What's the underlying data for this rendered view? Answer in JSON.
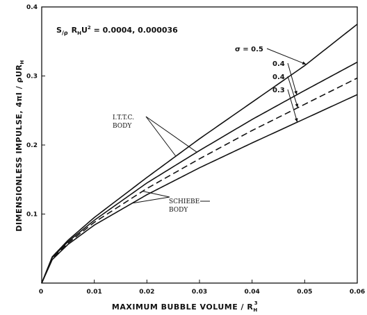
{
  "chart_data": {
    "type": "line",
    "title": "",
    "xlabel": "MAXIMUM BUBBLE VOLUME / R_H^3",
    "ylabel": "DIMENSIONLESS IMPULSE, 4πI / ρUR_H",
    "xlim": [
      0,
      0.06
    ],
    "ylim": [
      0,
      0.4
    ],
    "x_ticks": [
      {
        "value": 0,
        "label": "0"
      },
      {
        "value": 0.01,
        "label": "0.01"
      },
      {
        "value": 0.02,
        "label": "0.02"
      },
      {
        "value": 0.03,
        "label": "0.03"
      },
      {
        "value": 0.04,
        "label": "0.04"
      },
      {
        "value": 0.05,
        "label": "0.05"
      },
      {
        "value": 0.06,
        "label": "0.06"
      }
    ],
    "y_ticks": [
      {
        "value": 0.1,
        "label": "0.1"
      },
      {
        "value": 0.2,
        "label": "0.2"
      },
      {
        "value": 0.3,
        "label": "0.3"
      },
      {
        "value": 0.4,
        "label": "0.4"
      }
    ],
    "grid": false,
    "parameter_text": "S/ρ R_H U² = 0.0004, 0.000036",
    "series": [
      {
        "name": "σ = 0.5",
        "dash": "solid",
        "x": [
          0,
          0.002,
          0.005,
          0.01,
          0.02,
          0.03,
          0.04,
          0.05,
          0.06
        ],
        "y": [
          0,
          0.038,
          0.062,
          0.095,
          0.153,
          0.209,
          0.262,
          0.315,
          0.375
        ]
      },
      {
        "name": "0.4",
        "dash": "solid",
        "x": [
          0,
          0.002,
          0.005,
          0.01,
          0.02,
          0.03,
          0.04,
          0.05,
          0.06
        ],
        "y": [
          0,
          0.037,
          0.06,
          0.091,
          0.145,
          0.192,
          0.237,
          0.279,
          0.32
        ]
      },
      {
        "name": "0.4",
        "dash": "dashed",
        "x": [
          0,
          0.002,
          0.005,
          0.01,
          0.02,
          0.03,
          0.04,
          0.05,
          0.06
        ],
        "y": [
          0,
          0.035,
          0.058,
          0.088,
          0.137,
          0.18,
          0.221,
          0.259,
          0.297
        ]
      },
      {
        "name": "0.3",
        "dash": "solid",
        "x": [
          0,
          0.002,
          0.005,
          0.01,
          0.02,
          0.03,
          0.04,
          0.05,
          0.06
        ],
        "y": [
          0,
          0.034,
          0.056,
          0.084,
          0.128,
          0.167,
          0.203,
          0.238,
          0.273
        ]
      }
    ],
    "annotations": {
      "sigma_labels": [
        {
          "text": "σ = 0.5",
          "series": 0
        },
        {
          "text": "0.4",
          "series": 1
        },
        {
          "text": "0.4",
          "series": 2
        },
        {
          "text": "0.3",
          "series": 3
        }
      ],
      "ittc": {
        "line1": "I.T.T.C.",
        "line2": "BODY"
      },
      "schiebe": {
        "line1": "SCHIEBE",
        "line2": "BODY"
      }
    }
  }
}
